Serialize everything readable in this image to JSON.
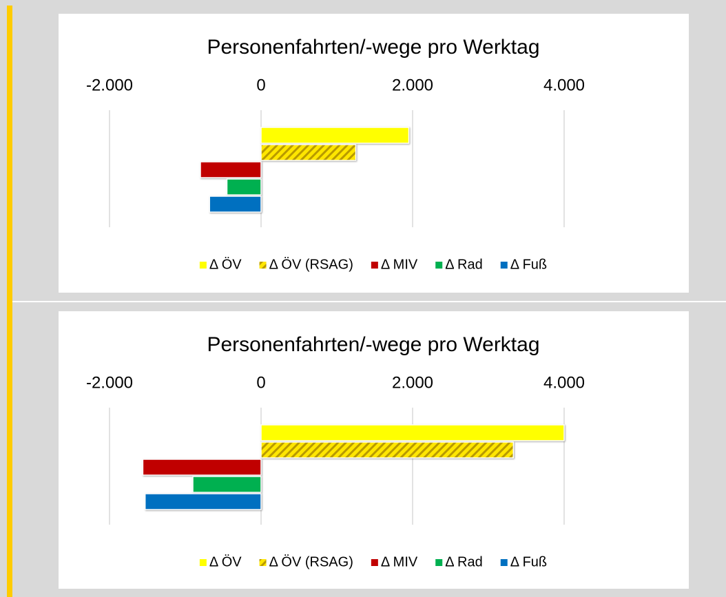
{
  "chart_data": [
    {
      "type": "barh",
      "title": "Personenfahrten/-wege pro Werktag",
      "xlim": [
        -2000,
        4500
      ],
      "xticks": [
        {
          "value": -2000,
          "label": "-2.000"
        },
        0,
        {
          "value": 2000,
          "label": "2.000"
        },
        {
          "value": 4000,
          "label": "4.000"
        }
      ],
      "grid": true,
      "legend": "bottom",
      "series": [
        {
          "name": "Δ ÖV",
          "color": "#ffff00",
          "values": [
            1950
          ]
        },
        {
          "name": "Δ ÖV (RSAG)",
          "color": "#ffe600",
          "pattern": "hatch",
          "values": [
            1250
          ]
        },
        {
          "name": "Δ MIV",
          "color": "#c00000",
          "values": [
            -800
          ]
        },
        {
          "name": "Δ Rad",
          "color": "#00b050",
          "values": [
            -450
          ]
        },
        {
          "name": "Δ Fuß",
          "color": "#0070c0",
          "values": [
            -680
          ]
        }
      ]
    },
    {
      "type": "barh",
      "title": "Personenfahrten/-wege pro Werktag",
      "xlim": [
        -2000,
        4500
      ],
      "xticks": [
        {
          "value": -2000,
          "label": "-2.000"
        },
        0,
        {
          "value": 2000,
          "label": "2.000"
        },
        {
          "value": 4000,
          "label": "4.000"
        }
      ],
      "grid": true,
      "legend": "bottom",
      "series": [
        {
          "name": "Δ ÖV",
          "color": "#ffff00",
          "values": [
            4000
          ]
        },
        {
          "name": "Δ ÖV (RSAG)",
          "color": "#ffe600",
          "pattern": "hatch",
          "values": [
            3330
          ]
        },
        {
          "name": "Δ MIV",
          "color": "#c00000",
          "values": [
            -1560
          ]
        },
        {
          "name": "Δ Rad",
          "color": "#00b050",
          "values": [
            -900
          ]
        },
        {
          "name": "Δ Fuß",
          "color": "#0070c0",
          "values": [
            -1530
          ]
        }
      ]
    }
  ]
}
